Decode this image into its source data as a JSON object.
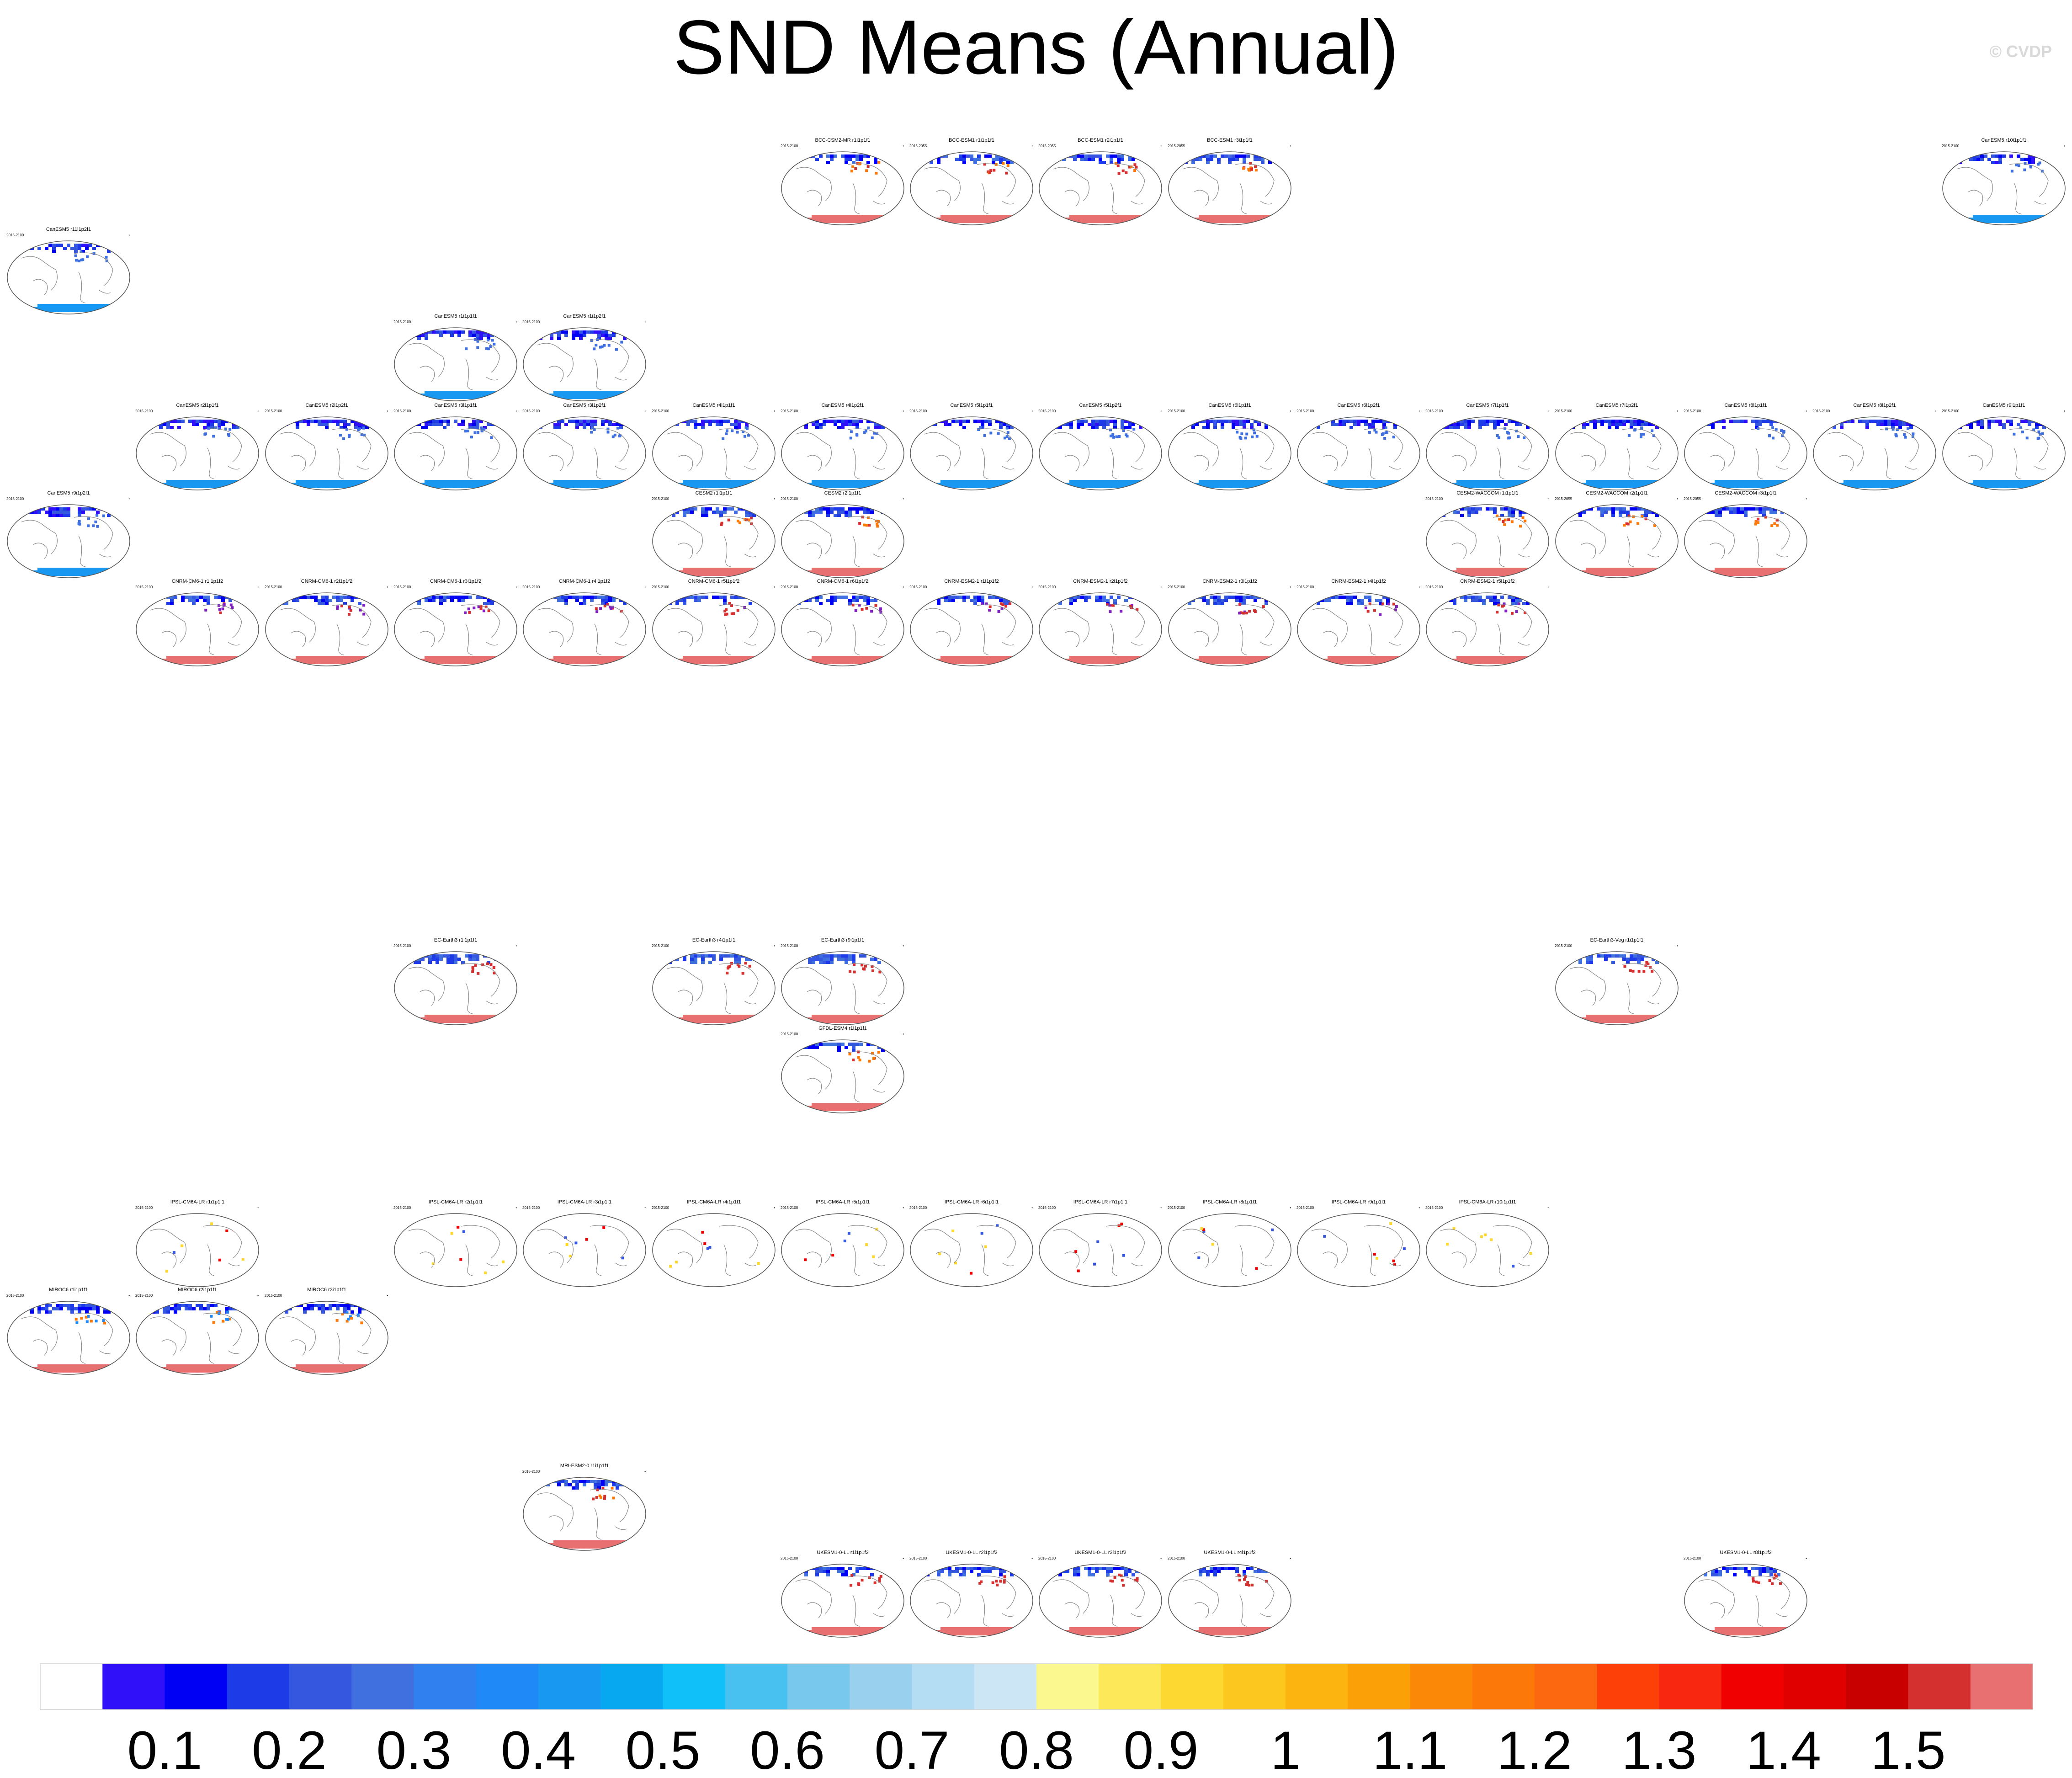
{
  "title": "SND Means (Annual)",
  "watermark": "© CVDP",
  "colorbar": {
    "tick_labels": [
      "0.1",
      "0.2",
      "0.3",
      "0.4",
      "0.5",
      "0.6",
      "0.7",
      "0.8",
      "0.9",
      "1",
      "1.1",
      "1.2",
      "1.3",
      "1.4",
      "1.5"
    ],
    "colors": [
      "#ffffff",
      "#3010f8",
      "#0000f5",
      "#1e3be8",
      "#3557e0",
      "#4070e0",
      "#3080f0",
      "#2089f8",
      "#1898f0",
      "#08a8f0",
      "#10c0f8",
      "#48c0f0",
      "#78c8ee",
      "#98d0ee",
      "#b4dcf2",
      "#cce6f6",
      "#fcf890",
      "#fce858",
      "#fcd830",
      "#fcc820",
      "#fcb410",
      "#fca008",
      "#fc8808",
      "#fc7808",
      "#fc6810",
      "#fc4008",
      "#f82810",
      "#f00000",
      "#e00000",
      "#c80000",
      "#d43030",
      "#e87070"
    ]
  },
  "chart_data": {
    "type": "heatmap",
    "title": "SND Means (Annual)",
    "colorbar_ticks": [
      0.1,
      0.2,
      0.3,
      0.4,
      0.5,
      0.6,
      0.7,
      0.8,
      0.9,
      1,
      1.1,
      1.2,
      1.3,
      1.4,
      1.5
    ],
    "panels": [
      {
        "row": 0,
        "col": 6,
        "title": "BCC-CSM2-MR r1i1p1f1",
        "period": "2015-2100",
        "style": "A"
      },
      {
        "row": 0,
        "col": 7,
        "title": "BCC-ESM1 r1i1p1f1",
        "period": "2015-2055",
        "style": "A"
      },
      {
        "row": 0,
        "col": 8,
        "title": "BCC-ESM1 r2i1p1f1",
        "period": "2015-2055",
        "style": "A"
      },
      {
        "row": 0,
        "col": 9,
        "title": "BCC-ESM1 r3i1p1f1",
        "period": "2015-2055",
        "style": "A"
      },
      {
        "row": 0,
        "col": 15,
        "title": "CanESM5 r10i1p1f1",
        "period": "2015-2100",
        "style": "B"
      },
      {
        "row": 1,
        "col": 0,
        "title": "CanESM5 r11i1p2f1",
        "period": "2015-2100",
        "style": "B"
      },
      {
        "row": 2,
        "col": 3,
        "title": "CanESM5 r1i1p1f1",
        "period": "2015-2100",
        "style": "B"
      },
      {
        "row": 2,
        "col": 4,
        "title": "CanESM5 r1i1p2f1",
        "period": "2015-2100",
        "style": "B"
      },
      {
        "row": 3,
        "col": 1,
        "title": "CanESM5 r2i1p1f1",
        "period": "2015-2100",
        "style": "B"
      },
      {
        "row": 3,
        "col": 2,
        "title": "CanESM5 r2i1p2f1",
        "period": "2015-2100",
        "style": "B"
      },
      {
        "row": 3,
        "col": 3,
        "title": "CanESM5 r3i1p1f1",
        "period": "2015-2100",
        "style": "B"
      },
      {
        "row": 3,
        "col": 4,
        "title": "CanESM5 r3i1p2f1",
        "period": "2015-2100",
        "style": "B"
      },
      {
        "row": 3,
        "col": 5,
        "title": "CanESM5 r4i1p1f1",
        "period": "2015-2100",
        "style": "B"
      },
      {
        "row": 3,
        "col": 6,
        "title": "CanESM5 r4i1p2f1",
        "period": "2015-2100",
        "style": "B"
      },
      {
        "row": 3,
        "col": 7,
        "title": "CanESM5 r5i1p1f1",
        "period": "2015-2100",
        "style": "B"
      },
      {
        "row": 3,
        "col": 8,
        "title": "CanESM5 r5i1p2f1",
        "period": "2015-2100",
        "style": "B"
      },
      {
        "row": 3,
        "col": 9,
        "title": "CanESM5 r6i1p1f1",
        "period": "2015-2100",
        "style": "B"
      },
      {
        "row": 3,
        "col": 10,
        "title": "CanESM5 r6i1p2f1",
        "period": "2015-2100",
        "style": "B"
      },
      {
        "row": 3,
        "col": 11,
        "title": "CanESM5 r7i1p1f1",
        "period": "2015-2100",
        "style": "B"
      },
      {
        "row": 3,
        "col": 12,
        "title": "CanESM5 r7i1p2f1",
        "period": "2015-2100",
        "style": "B"
      },
      {
        "row": 3,
        "col": 13,
        "title": "CanESM5 r8i1p1f1",
        "period": "2015-2100",
        "style": "B"
      },
      {
        "row": 3,
        "col": 14,
        "title": "CanESM5 r8i1p2f1",
        "period": "2015-2100",
        "style": "B"
      },
      {
        "row": 3,
        "col": 15,
        "title": "CanESM5 r9i1p1f1",
        "period": "2015-2100",
        "style": "B"
      },
      {
        "row": 4,
        "col": 0,
        "title": "CanESM5 r9i1p2f1",
        "period": "2015-2100",
        "style": "B"
      },
      {
        "row": 4,
        "col": 5,
        "title": "CESM2 r1i1p1f1",
        "period": "2015-2100",
        "style": "A"
      },
      {
        "row": 4,
        "col": 6,
        "title": "CESM2 r2i1p1f1",
        "period": "2015-2100",
        "style": "A"
      },
      {
        "row": 4,
        "col": 11,
        "title": "CESM2-WACCOM r1i1p1f1",
        "period": "2015-2100",
        "style": "A"
      },
      {
        "row": 4,
        "col": 12,
        "title": "CESM2-WACCOM r2i1p1f1",
        "period": "2015-2055",
        "style": "A"
      },
      {
        "row": 4,
        "col": 13,
        "title": "CESM2-WACCOM r3i1p1f1",
        "period": "2015-2055",
        "style": "A"
      },
      {
        "row": 5,
        "col": 1,
        "title": "CNRM-CM6-1 r1i1p1f2",
        "period": "2015-2100",
        "style": "C"
      },
      {
        "row": 5,
        "col": 2,
        "title": "CNRM-CM6-1 r2i1p1f2",
        "period": "2015-2100",
        "style": "C"
      },
      {
        "row": 5,
        "col": 3,
        "title": "CNRM-CM6-1 r3i1p1f2",
        "period": "2015-2100",
        "style": "C"
      },
      {
        "row": 5,
        "col": 4,
        "title": "CNRM-CM6-1 r4i1p1f2",
        "period": "2015-2100",
        "style": "C"
      },
      {
        "row": 5,
        "col": 5,
        "title": "CNRM-CM6-1 r5i1p1f2",
        "period": "2015-2100",
        "style": "C"
      },
      {
        "row": 5,
        "col": 6,
        "title": "CNRM-CM6-1 r6i1p1f2",
        "period": "2015-2100",
        "style": "C"
      },
      {
        "row": 5,
        "col": 7,
        "title": "CNRM-ESM2-1 r1i1p1f2",
        "period": "2015-2100",
        "style": "C"
      },
      {
        "row": 5,
        "col": 8,
        "title": "CNRM-ESM2-1 r2i1p1f2",
        "period": "2015-2100",
        "style": "C"
      },
      {
        "row": 5,
        "col": 9,
        "title": "CNRM-ESM2-1 r3i1p1f2",
        "period": "2015-2100",
        "style": "C"
      },
      {
        "row": 5,
        "col": 10,
        "title": "CNRM-ESM2-1 r4i1p1f2",
        "period": "2015-2100",
        "style": "C"
      },
      {
        "row": 5,
        "col": 11,
        "title": "CNRM-ESM2-1 r5i1p1f2",
        "period": "2015-2100",
        "style": "C"
      },
      {
        "row": 6,
        "col": 3,
        "title": "EC-Earth3 r1i1p1f1",
        "period": "2015-2100",
        "style": "E"
      },
      {
        "row": 6,
        "col": 5,
        "title": "EC-Earth3 r4i1p1f1",
        "period": "2015-2100",
        "style": "E"
      },
      {
        "row": 6,
        "col": 6,
        "title": "EC-Earth3 r9i1p1f1",
        "period": "2015-2100",
        "style": "E"
      },
      {
        "row": 6,
        "col": 12,
        "title": "EC-Earth3-Veg r1i1p1f1",
        "period": "2015-2100",
        "style": "E"
      },
      {
        "row": 7,
        "col": 6,
        "title": "GFDL-ESM4 r1i1p1f1",
        "period": "2015-2100",
        "style": "A"
      },
      {
        "row": 8,
        "col": 1,
        "title": "IPSL-CM6A-LR r1i1p1f1",
        "period": "2015-2100",
        "style": "D"
      },
      {
        "row": 8,
        "col": 3,
        "title": "IPSL-CM6A-LR r2i1p1f1",
        "period": "2015-2100",
        "style": "D"
      },
      {
        "row": 8,
        "col": 4,
        "title": "IPSL-CM6A-LR r3i1p1f1",
        "period": "2015-2100",
        "style": "D"
      },
      {
        "row": 8,
        "col": 5,
        "title": "IPSL-CM6A-LR r4i1p1f1",
        "period": "2015-2100",
        "style": "D"
      },
      {
        "row": 8,
        "col": 6,
        "title": "IPSL-CM6A-LR r5i1p1f1",
        "period": "2015-2100",
        "style": "D"
      },
      {
        "row": 8,
        "col": 7,
        "title": "IPSL-CM6A-LR r6i1p1f1",
        "period": "2015-2100",
        "style": "D"
      },
      {
        "row": 8,
        "col": 8,
        "title": "IPSL-CM6A-LR r7i1p1f1",
        "period": "2015-2100",
        "style": "D"
      },
      {
        "row": 8,
        "col": 9,
        "title": "IPSL-CM6A-LR r8i1p1f1",
        "period": "2015-2100",
        "style": "D"
      },
      {
        "row": 8,
        "col": 10,
        "title": "IPSL-CM6A-LR r9i1p1f1",
        "period": "2015-2100",
        "style": "D"
      },
      {
        "row": 8,
        "col": 11,
        "title": "IPSL-CM6A-LR r10i1p1f1",
        "period": "2015-2100",
        "style": "D"
      },
      {
        "row": 9,
        "col": 0,
        "title": "MIROC6 r1i1p1f1",
        "period": "2015-2100",
        "style": "F"
      },
      {
        "row": 9,
        "col": 1,
        "title": "MIROC6 r2i1p1f1",
        "period": "2015-2100",
        "style": "F"
      },
      {
        "row": 9,
        "col": 2,
        "title": "MIROC6 r3i1p1f1",
        "period": "2015-2100",
        "style": "F"
      },
      {
        "row": 10,
        "col": 4,
        "title": "MRI-ESM2-0 r1i1p1f1",
        "period": "2015-2100",
        "style": "A"
      },
      {
        "row": 11,
        "col": 6,
        "title": "UKESM1-0-LL r1i1p1f2",
        "period": "2015-2100",
        "style": "G"
      },
      {
        "row": 11,
        "col": 7,
        "title": "UKESM1-0-LL r2i1p1f2",
        "period": "2015-2100",
        "style": "G"
      },
      {
        "row": 11,
        "col": 8,
        "title": "UKESM1-0-LL r3i1p1f2",
        "period": "2015-2100",
        "style": "G"
      },
      {
        "row": 11,
        "col": 9,
        "title": "UKESM1-0-LL r4i1p1f2",
        "period": "2015-2100",
        "style": "G"
      },
      {
        "row": 11,
        "col": 13,
        "title": "UKESM1-0-LL r8i1p1f2",
        "period": "2015-2100",
        "style": "G"
      }
    ]
  }
}
